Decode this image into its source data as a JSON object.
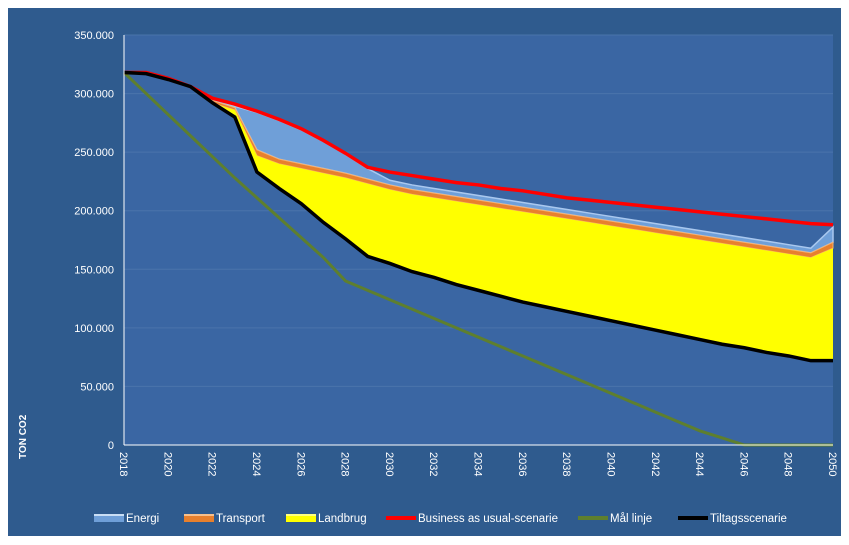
{
  "chart_data": {
    "type": "area",
    "title": "",
    "ylabel": "TON CO2",
    "xlabel": "",
    "ylim": [
      0,
      350000
    ],
    "yticks": [
      0,
      50000,
      100000,
      150000,
      200000,
      250000,
      300000,
      350000
    ],
    "ytick_labels": [
      "0",
      "50.000",
      "100.000",
      "150.000",
      "200.000",
      "250.000",
      "300.000",
      "350.000"
    ],
    "x": [
      2018,
      2019,
      2020,
      2021,
      2022,
      2023,
      2024,
      2025,
      2026,
      2027,
      2028,
      2029,
      2030,
      2031,
      2032,
      2033,
      2034,
      2035,
      2036,
      2037,
      2038,
      2039,
      2040,
      2041,
      2042,
      2043,
      2044,
      2045,
      2046,
      2047,
      2048,
      2049,
      2050
    ],
    "x_tick_labels": [
      "2018",
      "2020",
      "2022",
      "2024",
      "2026",
      "2028",
      "2030",
      "2032",
      "2034",
      "2036",
      "2038",
      "2040",
      "2042",
      "2044",
      "2046",
      "2048",
      "2050"
    ],
    "grid": true,
    "legend_position": "bottom",
    "colors": {
      "background": "#2f5b8e",
      "plot_fill": "#3a66a3",
      "grid": "#4a74ab",
      "axis": "#ffffff",
      "energi": "#6f9fd8",
      "transport": "#e8802d",
      "landbrug": "#ffff00",
      "bau": "#ff0000",
      "maal": "#5e7f2e",
      "tiltag": "#000000"
    },
    "series": [
      {
        "name": "Energi",
        "kind": "area",
        "values": [
          318000,
          318000,
          313000,
          306000,
          296000,
          289000,
          284000,
          277000,
          269000,
          259000,
          248000,
          236000,
          226000,
          222000,
          219000,
          216000,
          213000,
          210000,
          207000,
          204000,
          201000,
          198000,
          195000,
          192000,
          189000,
          186000,
          183000,
          180000,
          177000,
          174000,
          171000,
          168000,
          186000
        ]
      },
      {
        "name": "Transport",
        "kind": "area",
        "values": [
          318000,
          318000,
          313000,
          306000,
          294000,
          288000,
          252000,
          244000,
          240000,
          236000,
          232000,
          227000,
          222000,
          218000,
          215000,
          212000,
          209000,
          206000,
          203000,
          200000,
          197000,
          194000,
          191000,
          188000,
          185000,
          182000,
          179000,
          176000,
          173000,
          170000,
          167000,
          164000,
          173000
        ]
      },
      {
        "name": "Landbrug",
        "kind": "area",
        "values": [
          318000,
          318000,
          313000,
          306000,
          292000,
          286000,
          247000,
          240000,
          236000,
          232000,
          228000,
          223000,
          218000,
          214000,
          211000,
          208000,
          205000,
          202000,
          199000,
          196000,
          193000,
          190000,
          187000,
          184000,
          181000,
          178000,
          175000,
          172000,
          169000,
          166000,
          163000,
          160000,
          168000
        ]
      },
      {
        "name": "Business as usual-scenarie",
        "kind": "line",
        "values": [
          318000,
          318000,
          313000,
          306000,
          296000,
          291000,
          285000,
          278000,
          270000,
          260000,
          249000,
          237000,
          233000,
          230000,
          227000,
          224000,
          222000,
          219000,
          217000,
          214000,
          211000,
          209000,
          207000,
          205000,
          203000,
          201000,
          199000,
          197000,
          195000,
          193000,
          191000,
          189000,
          188000
        ]
      },
      {
        "name": "Mål linje",
        "kind": "line",
        "values": [
          318000,
          300000,
          282000,
          264000,
          246000,
          228000,
          211000,
          194000,
          177000,
          160000,
          140000,
          132000,
          124000,
          116000,
          108000,
          100000,
          92000,
          84000,
          76000,
          68000,
          60000,
          52000,
          44000,
          36000,
          28000,
          20000,
          12000,
          6000,
          0,
          0,
          0,
          0,
          0
        ]
      },
      {
        "name": "Tiltagsscenarie",
        "kind": "line",
        "values": [
          318000,
          317000,
          312000,
          306000,
          292000,
          280000,
          233000,
          219000,
          206000,
          190000,
          176000,
          161000,
          155000,
          148000,
          143000,
          137000,
          132000,
          127000,
          122000,
          118000,
          114000,
          110000,
          106000,
          102000,
          98000,
          94000,
          90000,
          86000,
          83000,
          79000,
          76000,
          72000,
          72000
        ]
      }
    ]
  }
}
